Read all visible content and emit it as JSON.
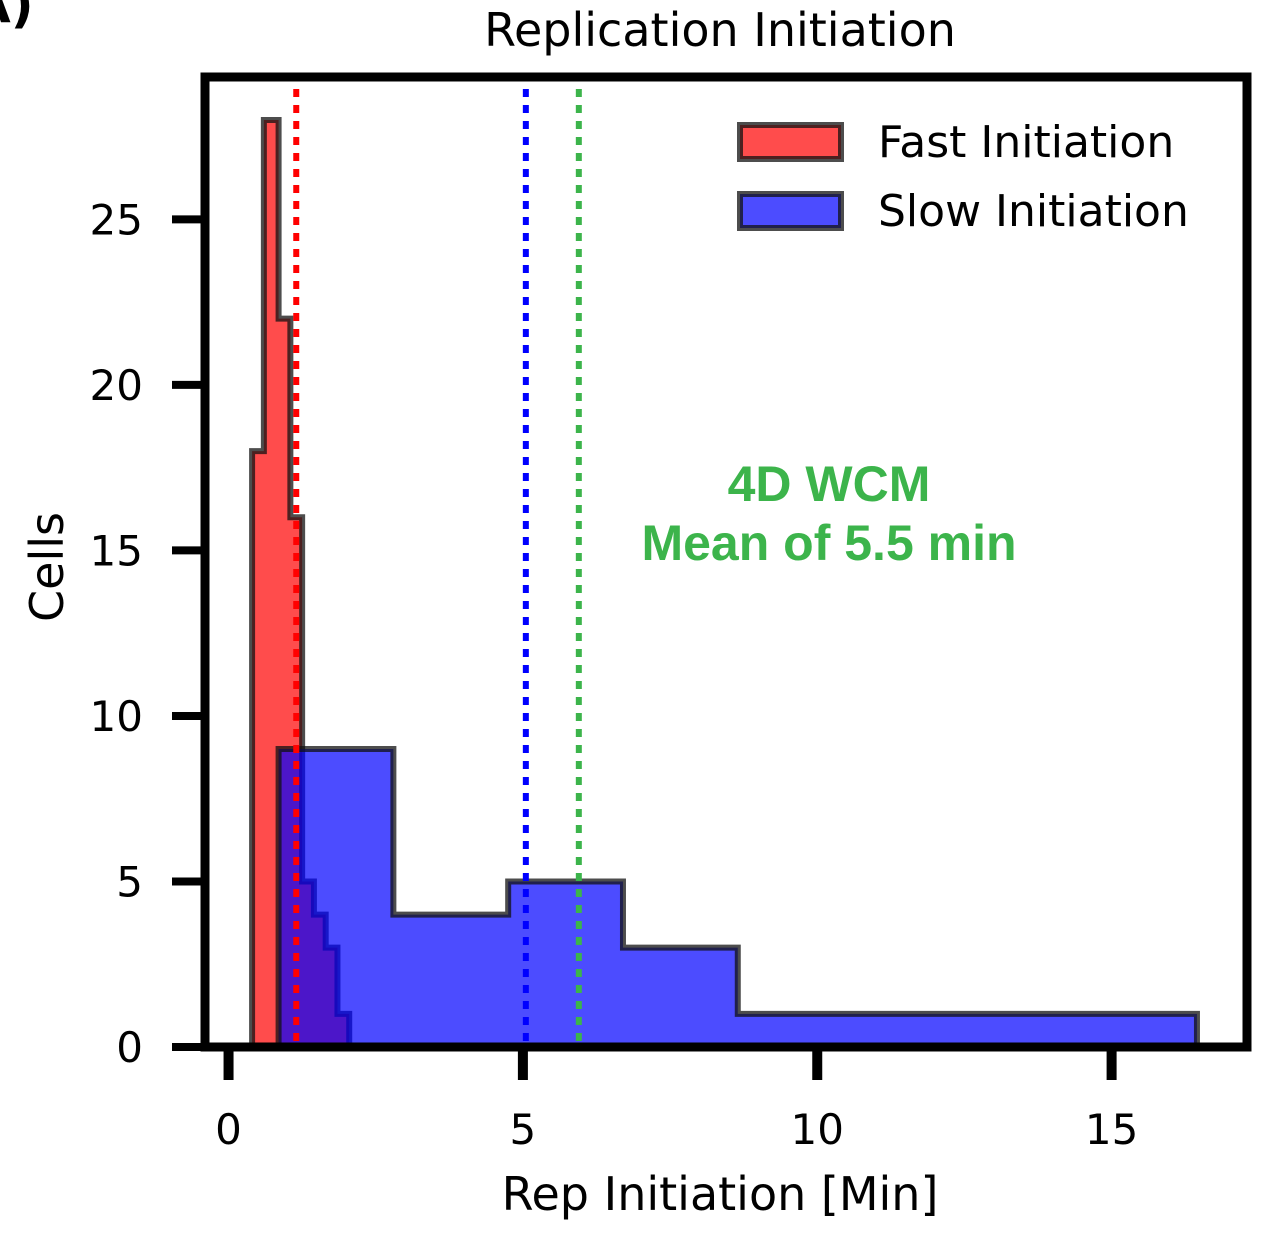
{
  "panel_label": "A)",
  "chart_data": {
    "type": "histogram",
    "title": "Replication Initiation",
    "xlabel": "Rep Initiation [Min]",
    "ylabel": "Cells",
    "xlim": [
      -0.4,
      17.3
    ],
    "ylim": [
      0,
      29.3
    ],
    "x_ticks": [
      0,
      5,
      10,
      15
    ],
    "y_ticks": [
      0,
      5,
      10,
      15,
      20,
      25
    ],
    "grid": false,
    "legend_position": "top-right",
    "series": [
      {
        "name": "Fast Initiation",
        "color": "#ff0000",
        "bin_edges": [
          0.4,
          0.6,
          0.85,
          1.05,
          1.25,
          1.45,
          1.65,
          1.85,
          2.05,
          2.3
        ],
        "counts": [
          18,
          28,
          22,
          16,
          5,
          4,
          3,
          1,
          0
        ]
      },
      {
        "name": "Slow Initiation",
        "color": "#0000ff",
        "bin_edges": [
          0.85,
          2.8,
          4.75,
          6.7,
          8.65,
          10.6,
          12.55,
          14.5,
          16.45
        ],
        "counts": [
          9,
          4,
          5,
          3,
          1,
          1,
          1,
          1
        ]
      }
    ],
    "vlines": [
      {
        "x": 1.15,
        "color": "#ff0000",
        "style": "dotted"
      },
      {
        "x": 5.05,
        "color": "#0000ff",
        "style": "dotted"
      },
      {
        "x": 5.95,
        "color": "#3cb44b",
        "style": "dotted"
      }
    ],
    "annotation": {
      "lines": [
        "4D WCM",
        "Mean of 5.5 min"
      ],
      "color": "#3cb44b",
      "x": 10.2,
      "y": 16.5
    }
  }
}
